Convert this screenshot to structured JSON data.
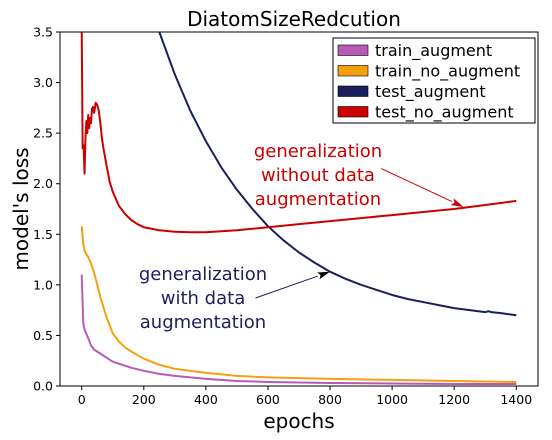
{
  "chart_data": {
    "type": "line",
    "title": "DiatomSizeRedcution",
    "xlabel": "epochs",
    "ylabel": "model's loss",
    "xlim": [
      -70,
      1470
    ],
    "ylim": [
      0,
      3.5
    ],
    "xticks": [
      0,
      200,
      400,
      600,
      800,
      1000,
      1200,
      1400
    ],
    "yticks": [
      0.0,
      0.5,
      1.0,
      1.5,
      2.0,
      2.5,
      3.0,
      3.5
    ],
    "xtick_labels": [
      "0",
      "200",
      "400",
      "600",
      "800",
      "1000",
      "1200",
      "1400"
    ],
    "ytick_labels": [
      "0.0",
      "0.5",
      "1.0",
      "1.5",
      "2.0",
      "2.5",
      "3.0",
      "3.5"
    ],
    "grid": false,
    "legend_position": "top-right",
    "series": [
      {
        "name": "train_augment",
        "color": "#b85ab8",
        "x": [
          0,
          5,
          10,
          20,
          30,
          40,
          50,
          60,
          70,
          80,
          90,
          100,
          120,
          140,
          160,
          200,
          250,
          300,
          400,
          500,
          600,
          800,
          1000,
          1200,
          1400
        ],
        "y": [
          1.1,
          0.62,
          0.55,
          0.48,
          0.4,
          0.36,
          0.34,
          0.32,
          0.3,
          0.28,
          0.26,
          0.24,
          0.22,
          0.2,
          0.18,
          0.15,
          0.12,
          0.1,
          0.07,
          0.05,
          0.04,
          0.03,
          0.025,
          0.02,
          0.02
        ]
      },
      {
        "name": "train_no_augment",
        "color": "#f5a00f",
        "x": [
          0,
          5,
          10,
          20,
          30,
          40,
          50,
          60,
          70,
          80,
          90,
          100,
          120,
          140,
          160,
          200,
          250,
          300,
          400,
          500,
          600,
          800,
          1000,
          1200,
          1400
        ],
        "y": [
          1.58,
          1.4,
          1.33,
          1.28,
          1.21,
          1.12,
          1.0,
          0.88,
          0.78,
          0.68,
          0.6,
          0.52,
          0.44,
          0.38,
          0.34,
          0.27,
          0.21,
          0.17,
          0.13,
          0.1,
          0.085,
          0.07,
          0.06,
          0.05,
          0.04
        ]
      },
      {
        "name": "test_augment",
        "color": "#1b1f5e",
        "x": [
          250,
          300,
          350,
          400,
          450,
          500,
          550,
          600,
          650,
          700,
          750,
          800,
          850,
          900,
          950,
          1000,
          1050,
          1100,
          1150,
          1200,
          1250,
          1300,
          1310,
          1320,
          1350,
          1400
        ],
        "y": [
          3.5,
          3.08,
          2.72,
          2.42,
          2.16,
          1.94,
          1.75,
          1.58,
          1.44,
          1.32,
          1.22,
          1.13,
          1.06,
          1.0,
          0.95,
          0.9,
          0.86,
          0.83,
          0.8,
          0.77,
          0.75,
          0.73,
          0.74,
          0.73,
          0.72,
          0.7
        ]
      },
      {
        "name": "test_no_augment",
        "color": "#cc0000",
        "x": [
          0,
          3,
          6,
          9,
          12,
          15,
          18,
          21,
          24,
          27,
          30,
          33,
          36,
          40,
          45,
          50,
          55,
          60,
          65,
          70,
          80,
          90,
          100,
          120,
          140,
          160,
          180,
          200,
          250,
          300,
          350,
          400,
          450,
          500,
          600,
          700,
          800,
          900,
          1000,
          1100,
          1200,
          1300,
          1400
        ],
        "y": [
          3.5,
          2.35,
          2.38,
          2.1,
          2.45,
          2.62,
          2.5,
          2.68,
          2.55,
          2.65,
          2.6,
          2.74,
          2.76,
          2.7,
          2.8,
          2.78,
          2.72,
          2.6,
          2.45,
          2.35,
          2.18,
          2.02,
          1.92,
          1.78,
          1.7,
          1.64,
          1.6,
          1.57,
          1.54,
          1.525,
          1.52,
          1.52,
          1.53,
          1.54,
          1.57,
          1.6,
          1.63,
          1.66,
          1.69,
          1.72,
          1.75,
          1.79,
          1.83
        ]
      }
    ],
    "annotations": [
      {
        "id": "no-aug",
        "lines": [
          "generalization",
          "without data",
          "augmentation"
        ],
        "color": "#cc0000",
        "arrow_to": [
          1230,
          1.77
        ],
        "arrow_from": [
          965,
          2.15
        ]
      },
      {
        "id": "aug",
        "lines": [
          "generalization",
          "with data",
          "augmentation"
        ],
        "color": "#1b1f5e",
        "arrow_to": [
          800,
          1.13
        ],
        "arrow_from": [
          560,
          0.87
        ]
      }
    ]
  }
}
